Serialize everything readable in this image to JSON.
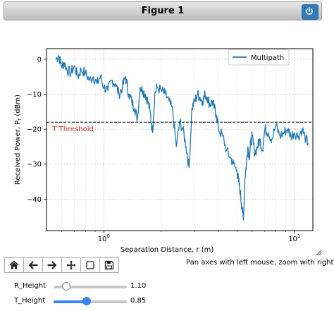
{
  "window": {
    "title": "Figure 1",
    "close_icon": "power-icon"
  },
  "chart_data": {
    "type": "line",
    "xlabel": "Separation Distance, r (m)",
    "ylabel": "Received Power, Pr (dBm)",
    "xscale": "log",
    "xlim": [
      0.5,
      12.5
    ],
    "ylim": [
      -49,
      3
    ],
    "x_ticks": [
      1,
      10
    ],
    "x_tick_labels": [
      "10^0",
      "10^1"
    ],
    "y_ticks": [
      0,
      -10,
      -20,
      -30,
      -40
    ],
    "y_tick_labels": [
      "0",
      "−10",
      "−20",
      "−30",
      "−40"
    ],
    "grid": true,
    "legend": {
      "position": "top-right",
      "entries": [
        "Multipath"
      ]
    },
    "series": [
      {
        "name": "Multipath",
        "color": "#1f77b4",
        "x": [
          0.56,
          0.58,
          0.6,
          0.62,
          0.64,
          0.67,
          0.7,
          0.73,
          0.76,
          0.8,
          0.84,
          0.88,
          0.92,
          0.96,
          1.0,
          1.05,
          1.1,
          1.15,
          1.2,
          1.25,
          1.3,
          1.35,
          1.4,
          1.45,
          1.5,
          1.55,
          1.6,
          1.65,
          1.7,
          1.75,
          1.8,
          1.85,
          1.9,
          2.0,
          2.1,
          2.2,
          2.3,
          2.4,
          2.5,
          2.6,
          2.7,
          2.8,
          2.9,
          3.0,
          3.1,
          3.2,
          3.3,
          3.4,
          3.5,
          3.6,
          3.7,
          3.8,
          3.9,
          4.0,
          4.2,
          4.4,
          4.6,
          4.8,
          5.0,
          5.1,
          5.2,
          5.3,
          5.4,
          5.5,
          5.6,
          5.7,
          5.8,
          5.9,
          6.0,
          6.2,
          6.4,
          6.6,
          6.8,
          7.0,
          7.3,
          7.6,
          8.0,
          8.4,
          8.8,
          9.2,
          9.6,
          10.0,
          10.5,
          11.0,
          11.5,
          11.8
        ],
        "y": [
          0,
          1,
          -2,
          -1,
          -3,
          -4,
          -2,
          -5,
          -3,
          -4,
          -6,
          -5,
          -7,
          -5,
          -8,
          -9,
          -6,
          -7,
          -10,
          -8,
          -5,
          -10,
          -12,
          -14,
          -17,
          -8,
          -9,
          -10,
          -12,
          -15,
          -21,
          -10,
          -8,
          -9,
          -10,
          -12,
          -15,
          -25,
          -18,
          -20,
          -25,
          -31,
          -14,
          -12,
          -10,
          -11,
          -12,
          -10,
          -11,
          -13,
          -12,
          -14,
          -16,
          -20,
          -22,
          -26,
          -28,
          -30,
          -32,
          -35,
          -38,
          -42,
          -46,
          -34,
          -30,
          -25,
          -28,
          -24,
          -22,
          -27,
          -25,
          -23,
          -26,
          -20,
          -21,
          -23,
          -19,
          -22,
          -21,
          -20,
          -22,
          -21,
          -22,
          -20,
          -23,
          -24
        ]
      }
    ],
    "annotations": [
      {
        "type": "hline",
        "y": -18,
        "style": "dashed",
        "color": "#000000"
      },
      {
        "text": "T Threshold",
        "x": 0.56,
        "y": -19.6,
        "color": "#d62728"
      }
    ]
  },
  "toolbar": {
    "buttons": [
      {
        "name": "home-button",
        "icon": "home-icon"
      },
      {
        "name": "back-button",
        "icon": "arrow-left-icon"
      },
      {
        "name": "forward-button",
        "icon": "arrow-right-icon"
      },
      {
        "name": "pan-button",
        "icon": "move-icon"
      },
      {
        "name": "zoom-button",
        "icon": "square-icon"
      },
      {
        "name": "save-button",
        "icon": "floppy-icon"
      }
    ],
    "status": "Pan axes with left mouse, zoom with right"
  },
  "sliders": [
    {
      "label": "R_Height",
      "value": 1.1,
      "value_text": "1.10",
      "fraction": 0.17
    },
    {
      "label": "T_Height",
      "value": 0.85,
      "value_text": "0.85",
      "fraction": 0.45
    }
  ]
}
